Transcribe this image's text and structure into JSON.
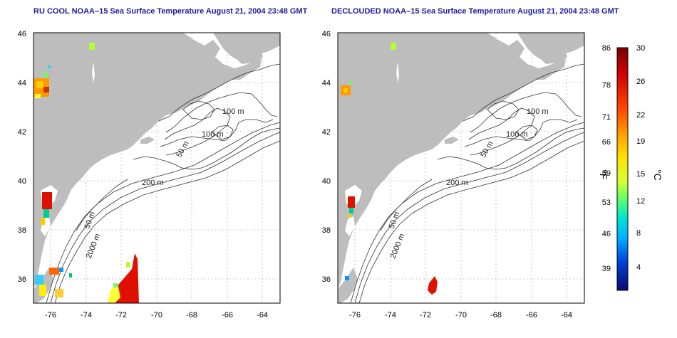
{
  "panels": [
    {
      "title": "RU COOL NOAA–15 Sea Surface Temperature August 21, 2004 23:48 GMT",
      "lat_ticks": [
        "36",
        "38",
        "40",
        "42",
        "44",
        "46"
      ],
      "lon_ticks": [
        "-76",
        "-74",
        "-72",
        "-70",
        "-68",
        "-66",
        "-64"
      ],
      "contour_labels": [
        "100 m",
        "100 m",
        "50 m",
        "200 m",
        "50 m",
        "2000 m"
      ]
    },
    {
      "title": "DECLOUDED NOAA–15 Sea Surface Temperature August 21, 2004 23:48 GMT",
      "lat_ticks": [
        "36",
        "38",
        "40",
        "42",
        "44",
        "46"
      ],
      "lon_ticks": [
        "-76",
        "-74",
        "-72",
        "-70",
        "-68",
        "-66",
        "-64"
      ],
      "contour_labels": [
        "100 m",
        "100 m",
        "50 m",
        "200 m",
        "50 m",
        "2000 m"
      ]
    }
  ],
  "map_extent": {
    "lon": [
      -77,
      -63
    ],
    "lat": [
      35,
      46
    ]
  },
  "colorbar": {
    "fahrenheit_label": "°F",
    "celsius_label": "°C",
    "fahrenheit_ticks": [
      "86",
      "78",
      "71",
      "66",
      "59",
      "53",
      "46",
      "39"
    ],
    "celsius_ticks": [
      "30",
      "26",
      "22",
      "19",
      "15",
      "12",
      "8",
      "4"
    ],
    "colors": [
      "#800000",
      "#cc0000",
      "#ff3300",
      "#ff9900",
      "#ffd700",
      "#ffff33",
      "#b3ff33",
      "#33ff99",
      "#00e5e5",
      "#0099ff",
      "#0033cc",
      "#0a0a7a"
    ]
  },
  "colors": {
    "land": "#bdbdbd",
    "title": "#1c1c9c",
    "contour": "#333333",
    "grid": "#b8b8b8"
  }
}
